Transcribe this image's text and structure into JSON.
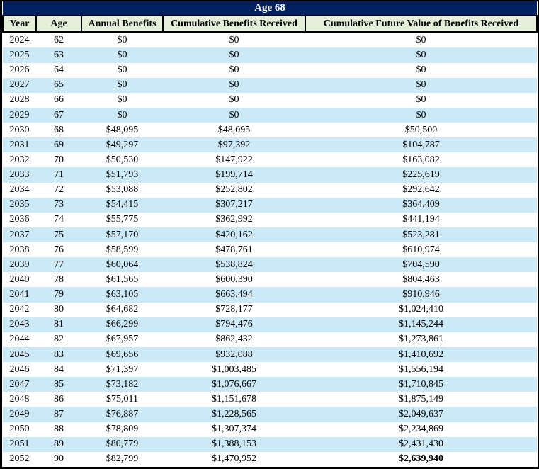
{
  "title": "Age 68",
  "table": {
    "columns": [
      "Year",
      "Age",
      "Annual Benefits",
      "Cumulative Benefits Received",
      "Cumulative Future Value of Benefits Received"
    ],
    "column_keys": [
      "year",
      "age",
      "annual-benefits",
      "cumulative-benefits-received",
      "cumulative-future-value"
    ],
    "rows": [
      [
        "2024",
        "62",
        "$0",
        "$0",
        "$0"
      ],
      [
        "2025",
        "63",
        "$0",
        "$0",
        "$0"
      ],
      [
        "2026",
        "64",
        "$0",
        "$0",
        "$0"
      ],
      [
        "2027",
        "65",
        "$0",
        "$0",
        "$0"
      ],
      [
        "2028",
        "66",
        "$0",
        "$0",
        "$0"
      ],
      [
        "2029",
        "67",
        "$0",
        "$0",
        "$0"
      ],
      [
        "2030",
        "68",
        "$48,095",
        "$48,095",
        "$50,500"
      ],
      [
        "2031",
        "69",
        "$49,297",
        "$97,392",
        "$104,787"
      ],
      [
        "2032",
        "70",
        "$50,530",
        "$147,922",
        "$163,082"
      ],
      [
        "2033",
        "71",
        "$51,793",
        "$199,714",
        "$225,619"
      ],
      [
        "2034",
        "72",
        "$53,088",
        "$252,802",
        "$292,642"
      ],
      [
        "2035",
        "73",
        "$54,415",
        "$307,217",
        "$364,409"
      ],
      [
        "2036",
        "74",
        "$55,775",
        "$362,992",
        "$441,194"
      ],
      [
        "2037",
        "75",
        "$57,170",
        "$420,162",
        "$523,281"
      ],
      [
        "2038",
        "76",
        "$58,599",
        "$478,761",
        "$610,974"
      ],
      [
        "2039",
        "77",
        "$60,064",
        "$538,824",
        "$704,590"
      ],
      [
        "2040",
        "78",
        "$61,565",
        "$600,390",
        "$804,463"
      ],
      [
        "2041",
        "79",
        "$63,105",
        "$663,494",
        "$910,946"
      ],
      [
        "2042",
        "80",
        "$64,682",
        "$728,177",
        "$1,024,410"
      ],
      [
        "2043",
        "81",
        "$66,299",
        "$794,476",
        "$1,145,244"
      ],
      [
        "2044",
        "82",
        "$67,957",
        "$862,432",
        "$1,273,861"
      ],
      [
        "2045",
        "83",
        "$69,656",
        "$932,088",
        "$1,410,692"
      ],
      [
        "2046",
        "84",
        "$71,397",
        "$1,003,485",
        "$1,556,194"
      ],
      [
        "2047",
        "85",
        "$73,182",
        "$1,076,667",
        "$1,710,845"
      ],
      [
        "2048",
        "86",
        "$75,011",
        "$1,151,678",
        "$1,875,149"
      ],
      [
        "2049",
        "87",
        "$76,887",
        "$1,228,565",
        "$2,049,637"
      ],
      [
        "2050",
        "88",
        "$78,809",
        "$1,307,374",
        "$2,234,869"
      ],
      [
        "2051",
        "89",
        "$80,779",
        "$1,388,153",
        "$2,431,430"
      ],
      [
        "2052",
        "90",
        "$82,799",
        "$1,470,952",
        "$2,639,940"
      ]
    ],
    "final_row_bold_last_cell": true
  },
  "colors": {
    "title_bar_bg": "#002060",
    "title_bar_text": "#ffffff",
    "column_header_bg": "#e3efd9",
    "stripe_blue": "#cce9f8",
    "stripe_white": "#ffffff",
    "border": "#000000"
  },
  "chart_data": {
    "type": "table",
    "title": "Age 68",
    "columns": [
      "Year",
      "Age",
      "Annual Benefits",
      "Cumulative Benefits Received",
      "Cumulative Future Value of Benefits Received"
    ],
    "rows": [
      [
        2024,
        62,
        0,
        0,
        0
      ],
      [
        2025,
        63,
        0,
        0,
        0
      ],
      [
        2026,
        64,
        0,
        0,
        0
      ],
      [
        2027,
        65,
        0,
        0,
        0
      ],
      [
        2028,
        66,
        0,
        0,
        0
      ],
      [
        2029,
        67,
        0,
        0,
        0
      ],
      [
        2030,
        68,
        48095,
        48095,
        50500
      ],
      [
        2031,
        69,
        49297,
        97392,
        104787
      ],
      [
        2032,
        70,
        50530,
        147922,
        163082
      ],
      [
        2033,
        71,
        51793,
        199714,
        225619
      ],
      [
        2034,
        72,
        53088,
        252802,
        292642
      ],
      [
        2035,
        73,
        54415,
        307217,
        364409
      ],
      [
        2036,
        74,
        55775,
        362992,
        441194
      ],
      [
        2037,
        75,
        57170,
        420162,
        523281
      ],
      [
        2038,
        76,
        58599,
        478761,
        610974
      ],
      [
        2039,
        77,
        60064,
        538824,
        704590
      ],
      [
        2040,
        78,
        61565,
        600390,
        804463
      ],
      [
        2041,
        79,
        63105,
        663494,
        910946
      ],
      [
        2042,
        80,
        64682,
        728177,
        1024410
      ],
      [
        2043,
        81,
        66299,
        794476,
        1145244
      ],
      [
        2044,
        82,
        67957,
        862432,
        1273861
      ],
      [
        2045,
        83,
        69656,
        932088,
        1410692
      ],
      [
        2046,
        84,
        71397,
        1003485,
        1556194
      ],
      [
        2047,
        85,
        73182,
        1076667,
        1710845
      ],
      [
        2048,
        86,
        75011,
        1151678,
        1875149
      ],
      [
        2049,
        87,
        76887,
        1228565,
        2049637
      ],
      [
        2050,
        88,
        78809,
        1307374,
        2234869
      ],
      [
        2051,
        89,
        80779,
        1388153,
        2431430
      ],
      [
        2052,
        90,
        82799,
        1470952,
        2639940
      ]
    ],
    "notes": "Rows alternate white/light-blue striping; final Cumulative Future Value (2,639,940) is rendered bold."
  }
}
